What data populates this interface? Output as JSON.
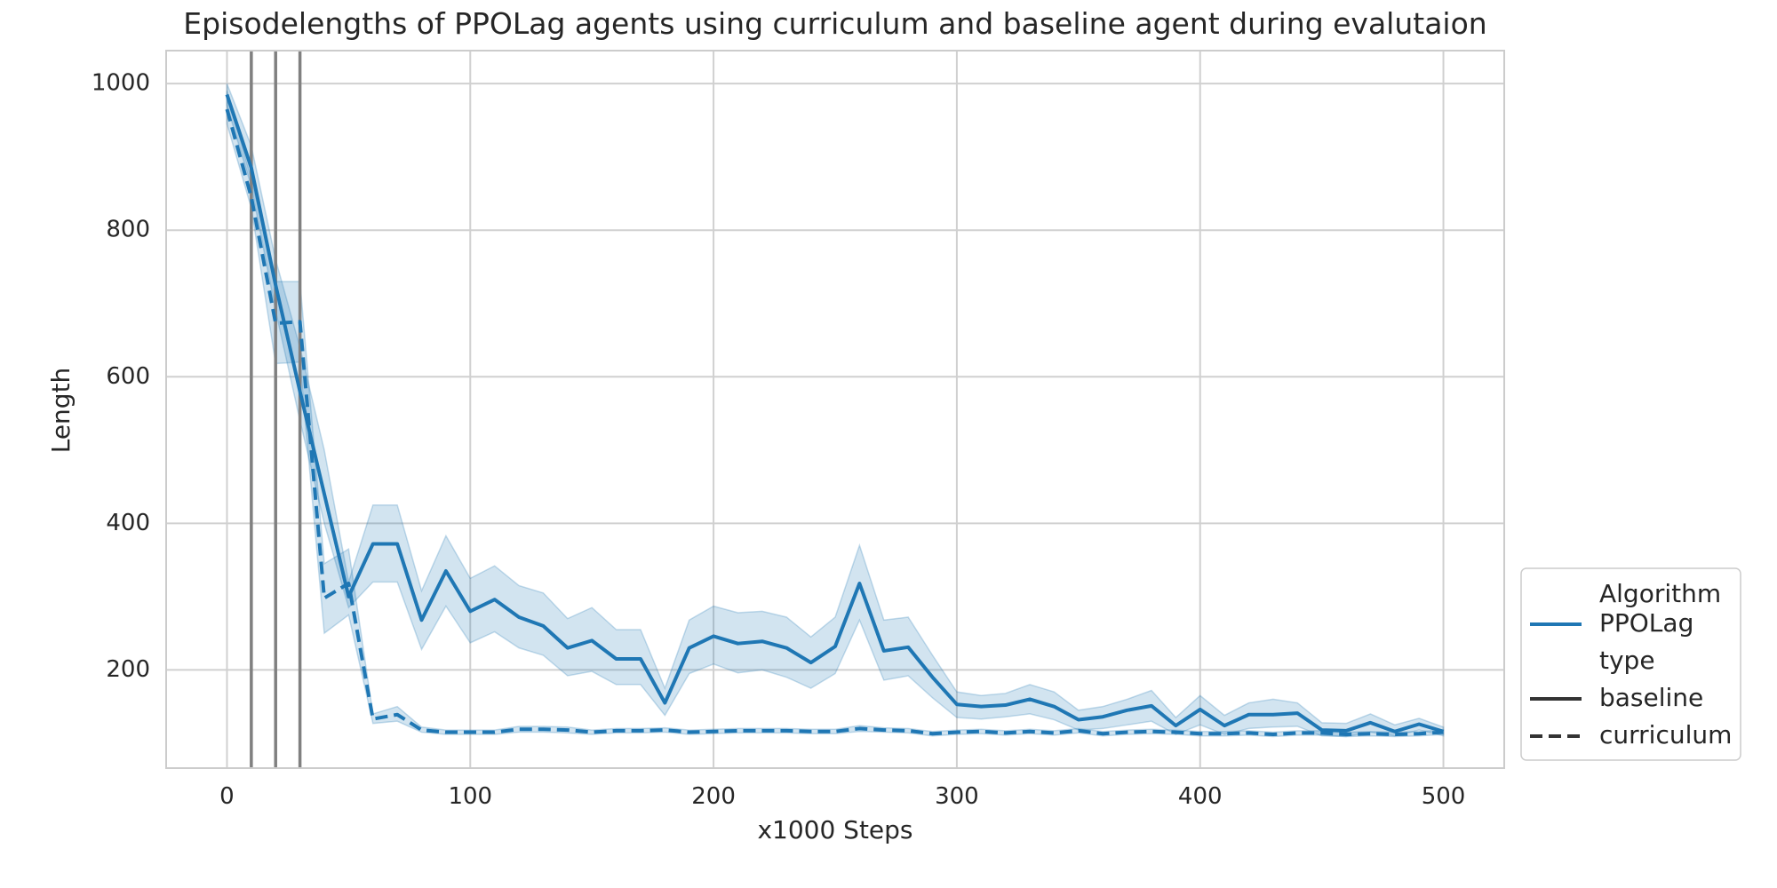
{
  "chart_data": {
    "type": "line",
    "title": "Episodelengths of PPOLag agents using curriculum and baseline agent during evalutaion",
    "xlabel": "x1000 Steps",
    "ylabel": "Length",
    "xlim": [
      -25,
      525
    ],
    "ylim": [
      66,
      1045
    ],
    "xticks": [
      0,
      100,
      200,
      300,
      400,
      500
    ],
    "yticks": [
      200,
      400,
      600,
      800,
      1000
    ],
    "grid": true,
    "vlines": [
      10,
      20,
      30
    ],
    "colors": {
      "series": "#1f77b4",
      "vline": "#808080",
      "grid": "#d0d0d0",
      "band": "#1f77b4"
    },
    "legend": {
      "placement": "lower-right",
      "entries": [
        {
          "label": "Algorithm",
          "style": "header"
        },
        {
          "label": "PPOLag",
          "style": "color"
        },
        {
          "label": "type",
          "style": "header"
        },
        {
          "label": "baseline",
          "style": "solid"
        },
        {
          "label": "curriculum",
          "style": "dashed"
        }
      ]
    },
    "series": [
      {
        "name": "baseline",
        "algorithm": "PPOLag",
        "dash": "solid",
        "x": [
          0,
          10,
          20,
          30,
          40,
          50,
          60,
          70,
          80,
          90,
          100,
          110,
          120,
          130,
          140,
          150,
          160,
          170,
          180,
          190,
          200,
          210,
          220,
          230,
          240,
          250,
          260,
          270,
          280,
          290,
          300,
          310,
          320,
          330,
          340,
          350,
          360,
          370,
          380,
          390,
          400,
          410,
          420,
          430,
          440,
          450,
          460,
          470,
          480,
          490,
          500
        ],
        "y": [
          985,
          885,
          725,
          580,
          440,
          300,
          372,
          372,
          268,
          335,
          280,
          296,
          272,
          260,
          230,
          240,
          215,
          215,
          155,
          230,
          246,
          236,
          239,
          230,
          210,
          232,
          318,
          226,
          231,
          190,
          153,
          150,
          152,
          160,
          150,
          132,
          136,
          145,
          151,
          124,
          146,
          124,
          139,
          139,
          141,
          118,
          117,
          128,
          116,
          126,
          116
        ],
        "ci_low": [
          970,
          860,
          690,
          540,
          400,
          285,
          320,
          320,
          228,
          287,
          237,
          252,
          230,
          220,
          192,
          198,
          180,
          180,
          138,
          195,
          208,
          196,
          200,
          190,
          175,
          195,
          268,
          186,
          192,
          162,
          135,
          133,
          136,
          140,
          132,
          118,
          120,
          125,
          130,
          112,
          125,
          112,
          120,
          122,
          123,
          110,
          109,
          115,
          110,
          118,
          110
        ],
        "ci_high": [
          1000,
          915,
          760,
          640,
          500,
          320,
          425,
          425,
          308,
          383,
          325,
          342,
          315,
          305,
          270,
          285,
          255,
          255,
          175,
          268,
          287,
          278,
          280,
          272,
          245,
          272,
          370,
          268,
          272,
          220,
          170,
          165,
          168,
          180,
          170,
          145,
          150,
          160,
          172,
          135,
          165,
          138,
          155,
          160,
          155,
          128,
          127,
          140,
          125,
          134,
          122
        ]
      },
      {
        "name": "curriculum",
        "algorithm": "PPOLag",
        "dash": "dashed",
        "x": [
          0,
          10,
          20,
          30,
          40,
          50,
          60,
          70,
          80,
          90,
          100,
          110,
          120,
          130,
          140,
          150,
          160,
          170,
          180,
          190,
          200,
          210,
          220,
          230,
          240,
          250,
          260,
          270,
          280,
          290,
          300,
          310,
          320,
          330,
          340,
          350,
          360,
          370,
          380,
          390,
          400,
          410,
          420,
          430,
          440,
          450,
          460,
          470,
          480,
          490,
          500
        ],
        "y": [
          965,
          845,
          673,
          675,
          298,
          318,
          133,
          139,
          118,
          115,
          115,
          115,
          119,
          119,
          118,
          115,
          117,
          117,
          118,
          115,
          116,
          117,
          117,
          117,
          116,
          116,
          120,
          118,
          117,
          113,
          115,
          116,
          114,
          116,
          114,
          117,
          113,
          115,
          116,
          115,
          113,
          113,
          114,
          112,
          114,
          114,
          112,
          113,
          112,
          113,
          115
        ],
        "ci_low": [
          945,
          830,
          618,
          620,
          250,
          275,
          127,
          130,
          115,
          112,
          112,
          112,
          115,
          115,
          114,
          112,
          114,
          114,
          115,
          112,
          113,
          114,
          114,
          114,
          113,
          113,
          116,
          115,
          114,
          110,
          112,
          113,
          111,
          113,
          111,
          114,
          110,
          112,
          113,
          112,
          110,
          110,
          111,
          109,
          111,
          111,
          109,
          110,
          109,
          110,
          112
        ],
        "ci_high": [
          990,
          870,
          730,
          730,
          345,
          365,
          140,
          150,
          122,
          118,
          118,
          118,
          123,
          123,
          122,
          118,
          120,
          120,
          121,
          118,
          119,
          120,
          120,
          120,
          119,
          119,
          124,
          121,
          120,
          116,
          118,
          119,
          117,
          119,
          117,
          120,
          116,
          118,
          119,
          118,
          116,
          116,
          117,
          115,
          117,
          117,
          115,
          116,
          115,
          116,
          118
        ]
      }
    ]
  }
}
